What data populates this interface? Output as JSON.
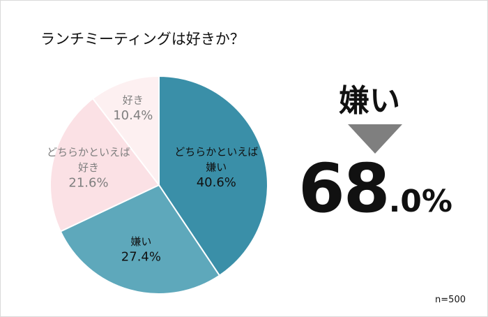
{
  "chart_data": {
    "type": "pie",
    "title": "ランチミーティングは好きか？",
    "start_angle_deg": 0,
    "direction": "clockwise",
    "slices": [
      {
        "label_lines": [
          "どちらかといえば",
          "嫌い"
        ],
        "value": 40.6,
        "value_label": "40.6%",
        "color": "#3a8fa8",
        "text_color": "#111111"
      },
      {
        "label_lines": [
          "嫌い"
        ],
        "value": 27.4,
        "value_label": "27.4%",
        "color": "#5ea8bb",
        "text_color": "#111111"
      },
      {
        "label_lines": [
          "どちらかといえば",
          "好き"
        ],
        "value": 21.6,
        "value_label": "21.6%",
        "color": "#fbe1e5",
        "text_color": "#7f7f7f"
      },
      {
        "label_lines": [
          "好き"
        ],
        "value": 10.4,
        "value_label": "10.4%",
        "color": "#fdf0f1",
        "text_color": "#7f7f7f"
      }
    ],
    "sample_size": "n=500"
  },
  "highlight": {
    "label": "嫌い",
    "value_int": "68",
    "value_dec": ".0%",
    "arrow_color": "#7f7f7f"
  }
}
